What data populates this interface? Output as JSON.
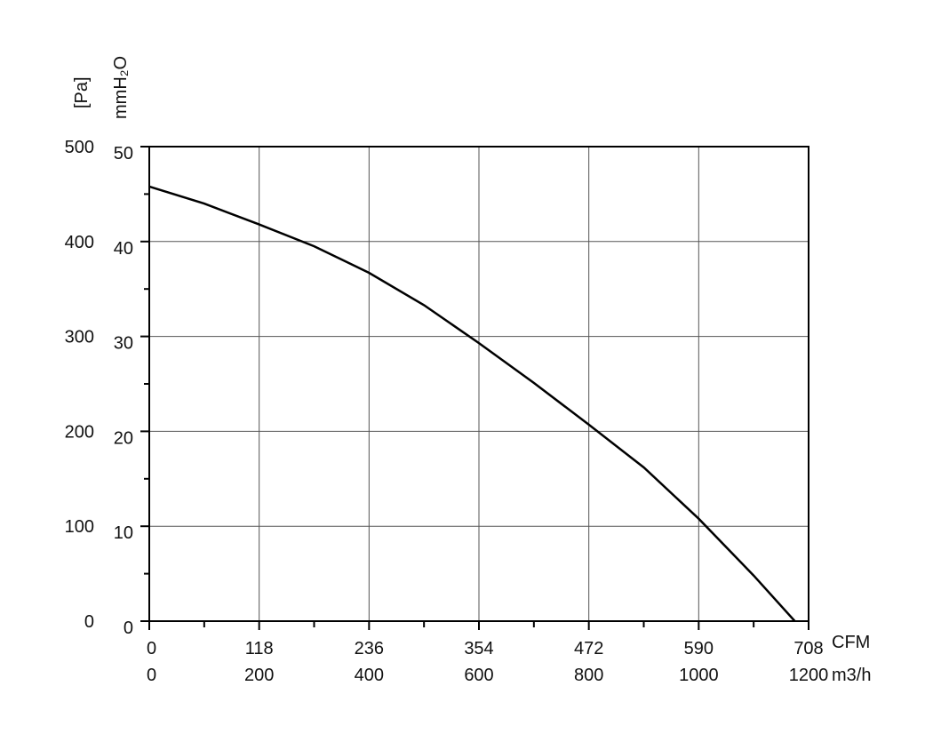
{
  "chart_data": {
    "type": "line",
    "title": "",
    "y_unit_pa": "[Pa]",
    "y_unit_mmh2o": "mmH₂O",
    "x_unit_cfm": "CFM",
    "x_unit_m3h": "m3/h",
    "y_ticks_pa": [
      "0",
      "100",
      "200",
      "300",
      "400",
      "500"
    ],
    "y_ticks_mmh2o": [
      "0",
      "10",
      "20",
      "30",
      "40",
      "50"
    ],
    "x_ticks_cfm": [
      "0",
      "118",
      "236",
      "354",
      "472",
      "590",
      "708"
    ],
    "x_ticks_m3h": [
      "0",
      "200",
      "400",
      "600",
      "800",
      "1000",
      "1200"
    ],
    "xlim": [
      0,
      1200
    ],
    "ylim": [
      0,
      500
    ],
    "grid": true,
    "series": [
      {
        "x": [
          0,
          100,
          200,
          300,
          400,
          500,
          600,
          700,
          800,
          900,
          1000,
          1100,
          1175
        ],
        "y": [
          458,
          440,
          418,
          395,
          367,
          333,
          293,
          251,
          207,
          162,
          108,
          48,
          0
        ]
      }
    ]
  }
}
